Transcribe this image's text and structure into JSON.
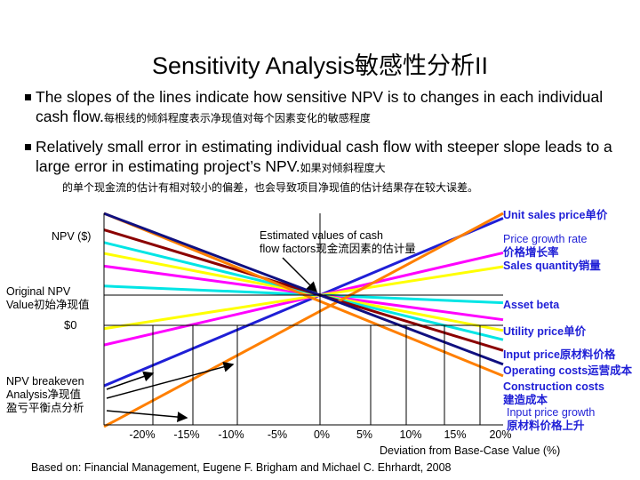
{
  "title": "Sensitivity Analysis敏感性分析II",
  "bullets": [
    {
      "en": "The slopes of the lines indicate how sensitive NPV is to changes in each individual cash flow.",
      "cn": "每根线的倾斜程度表示净现值对每个因素变化的敏感程度"
    },
    {
      "en": "Relatively small error in estimating individual cash flow with steeper slope leads to a large error in estimating project’s NPV.",
      "cn": "如果对倾斜程度大"
    }
  ],
  "bullet2_cn_cont": "的单个现金流的估计有相对较小的偏差，也会导致项目净现值的估计结果存在较大误差。",
  "labels": {
    "npv": "NPV ($)",
    "estimated_line1": "Estimated values of cash",
    "estimated_line2": "flow factors现金流因素的估计量",
    "original_npv_line1": "Original NPV",
    "original_npv_line2": "Value初始净现值",
    "zero": "$0",
    "breakeven_line1": "NPV breakeven",
    "breakeven_line2": "Analysis净现值",
    "breakeven_line3": "盈亏平衡点分析"
  },
  "legend": {
    "unit_sales_price": "Unit sales price单价",
    "price_growth_rate": "Price growth rate",
    "price_growth_rate_cn": "价格增长率",
    "sales_quantity": "Sales quantity销量",
    "asset_beta": "Asset beta",
    "utility_price": "Utility price单价",
    "input_price": "Input price原材料价格",
    "operating_costs": "Operating costs运营成本",
    "construction_costs": "Construction costs",
    "construction_costs_cn": "建造成本",
    "input_price_growth": "Input price growth",
    "input_price_growth_cn": "原材料价格上升"
  },
  "chart_data": {
    "type": "line",
    "x_ticks": [
      "-20%",
      "-15%",
      "-10%",
      "-5%",
      "0%",
      "5%",
      "10%",
      "15%",
      "20%"
    ],
    "x_values": [
      -20,
      -15,
      -10,
      -5,
      0,
      5,
      10,
      15,
      20
    ],
    "xlabel": "Deviation from Base-Case Value (%)",
    "ylabel": "NPV ($)",
    "series": [
      {
        "name": "Unit sales price单价",
        "color": "#1f1fd6",
        "slope": 1.0
      },
      {
        "name": "Price growth rate",
        "color": "#ff00ff",
        "slope": 0.55
      },
      {
        "name": "Sales quantity销量",
        "color": "#ffff00",
        "slope": 0.37
      },
      {
        "name": "Asset beta",
        "color": "#00e5e5",
        "slope": -0.1
      },
      {
        "name": "Utility price单价",
        "color": "#ff00ff",
        "slope": -0.32
      },
      {
        "name": "Input price原材料价格",
        "color": "#ffff00",
        "slope": -0.46
      },
      {
        "name": "Operating costs运营成本",
        "color": "#00e5e5",
        "slope": -0.58
      },
      {
        "name": "Construction costs",
        "color": "#8b0000",
        "slope": -0.72
      },
      {
        "name": "Input price growth",
        "color": "#ff7f00",
        "slope": -1.05
      },
      {
        "name": "",
        "color": "#ff7f00",
        "slope": 1.45
      },
      {
        "name": "",
        "color": "#101080",
        "slope": -0.9
      }
    ]
  },
  "credit": "Based on: Financial Management, Eugene F. Brigham and Michael C. Ehrhardt, 2008"
}
